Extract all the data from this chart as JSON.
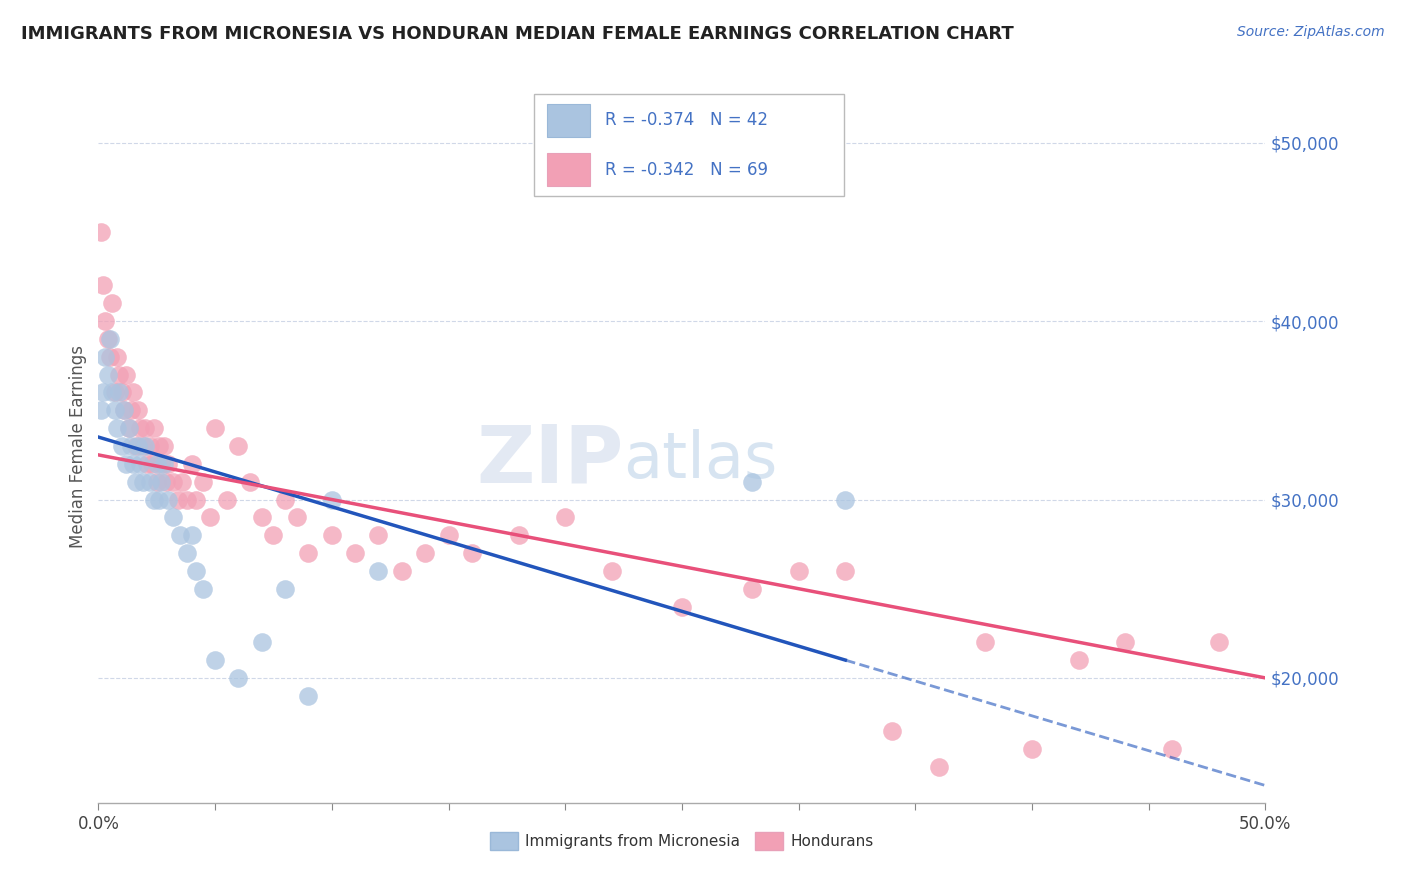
{
  "title": "IMMIGRANTS FROM MICRONESIA VS HONDURAN MEDIAN FEMALE EARNINGS CORRELATION CHART",
  "source": "Source: ZipAtlas.com",
  "ylabel": "Median Female Earnings",
  "y_ticks": [
    20000,
    30000,
    40000,
    50000
  ],
  "y_tick_labels": [
    "$20,000",
    "$30,000",
    "$40,000",
    "$50,000"
  ],
  "x_ticks": [
    0.0,
    0.05,
    0.1,
    0.15,
    0.2,
    0.25,
    0.3,
    0.35,
    0.4,
    0.45,
    0.5
  ],
  "xmin": 0.0,
  "xmax": 0.5,
  "ymin": 13000,
  "ymax": 53000,
  "legend_r_blue": "R = -0.374",
  "legend_n_blue": "N = 42",
  "legend_r_pink": "R = -0.342",
  "legend_n_pink": "N = 69",
  "blue_color": "#aac4e0",
  "pink_color": "#f2a0b5",
  "blue_line_color": "#2255bb",
  "pink_line_color": "#e8507a",
  "text_color": "#4472c4",
  "grid_color": "#d0d8e8",
  "watermark_zip": "ZIP",
  "watermark_atlas": "atlas",
  "blue_scatter_x": [
    0.001,
    0.002,
    0.003,
    0.004,
    0.005,
    0.006,
    0.007,
    0.008,
    0.009,
    0.01,
    0.011,
    0.012,
    0.013,
    0.014,
    0.015,
    0.016,
    0.017,
    0.018,
    0.019,
    0.02,
    0.022,
    0.024,
    0.025,
    0.026,
    0.027,
    0.028,
    0.03,
    0.032,
    0.035,
    0.038,
    0.04,
    0.042,
    0.045,
    0.05,
    0.06,
    0.07,
    0.08,
    0.09,
    0.1,
    0.12,
    0.28,
    0.32
  ],
  "blue_scatter_y": [
    35000,
    36000,
    38000,
    37000,
    39000,
    36000,
    35000,
    34000,
    36000,
    33000,
    35000,
    32000,
    34000,
    33000,
    32000,
    31000,
    33000,
    32000,
    31000,
    33000,
    31000,
    30000,
    32000,
    30000,
    31000,
    32000,
    30000,
    29000,
    28000,
    27000,
    28000,
    26000,
    25000,
    21000,
    20000,
    22000,
    25000,
    19000,
    30000,
    26000,
    31000,
    30000
  ],
  "pink_scatter_x": [
    0.001,
    0.002,
    0.003,
    0.004,
    0.005,
    0.006,
    0.007,
    0.008,
    0.009,
    0.01,
    0.011,
    0.012,
    0.013,
    0.014,
    0.015,
    0.016,
    0.017,
    0.018,
    0.019,
    0.02,
    0.021,
    0.022,
    0.023,
    0.024,
    0.025,
    0.026,
    0.027,
    0.028,
    0.029,
    0.03,
    0.032,
    0.034,
    0.036,
    0.038,
    0.04,
    0.042,
    0.045,
    0.048,
    0.05,
    0.055,
    0.06,
    0.065,
    0.07,
    0.075,
    0.08,
    0.085,
    0.09,
    0.1,
    0.11,
    0.12,
    0.13,
    0.14,
    0.15,
    0.16,
    0.18,
    0.2,
    0.22,
    0.25,
    0.28,
    0.3,
    0.32,
    0.34,
    0.36,
    0.38,
    0.4,
    0.42,
    0.44,
    0.46,
    0.48
  ],
  "pink_scatter_y": [
    45000,
    42000,
    40000,
    39000,
    38000,
    41000,
    36000,
    38000,
    37000,
    36000,
    35000,
    37000,
    34000,
    35000,
    36000,
    33000,
    35000,
    34000,
    33000,
    34000,
    32000,
    33000,
    32000,
    34000,
    31000,
    33000,
    32000,
    33000,
    31000,
    32000,
    31000,
    30000,
    31000,
    30000,
    32000,
    30000,
    31000,
    29000,
    34000,
    30000,
    33000,
    31000,
    29000,
    28000,
    30000,
    29000,
    27000,
    28000,
    27000,
    28000,
    26000,
    27000,
    28000,
    27000,
    28000,
    29000,
    26000,
    24000,
    25000,
    26000,
    26000,
    17000,
    15000,
    22000,
    16000,
    21000,
    22000,
    16000,
    22000
  ],
  "blue_line_x0": 0.0,
  "blue_line_x1": 0.32,
  "blue_line_y0": 33500,
  "blue_line_y1": 21000,
  "pink_line_x0": 0.0,
  "pink_line_x1": 0.5,
  "pink_line_y0": 32500,
  "pink_line_y1": 20000
}
